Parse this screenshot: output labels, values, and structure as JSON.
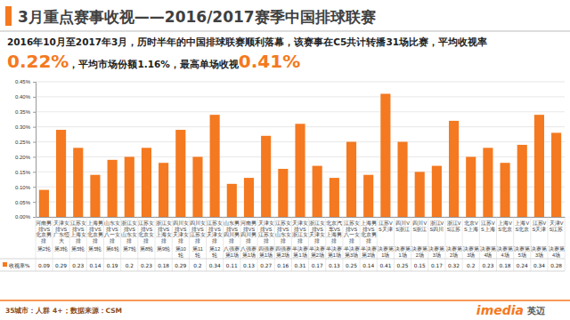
{
  "chart_data": {
    "type": "bar",
    "title": "3月重点赛事收视——2016/2017赛季中国排球联赛",
    "subtitle": [
      "2016年10月至2017年3月，历时半年的中国排球联赛顺利落幕，该赛事在C5共计转播31场比赛，平均收视率",
      "0.22%",
      "，平均市场份额1.16%，最高单场收视",
      "0.41%"
    ],
    "categories": [
      "河南男排VS北京男排\n第2轮",
      "天津女排VS广东恒大\n第3轮",
      "江苏女排VS上海女排\n第5轮",
      "上海男排VS北京男排\n第5轮",
      "山东女排VS八一女排\n第6轮",
      "浙江女排VS山东女排\n第7轮",
      "江苏女排VS北京女排\n第8轮",
      "浙江女排VS上海女排\n第9轮",
      "四川女排VS天津女排\n第10轮",
      "四川女排VS江苏女排\n第11轮",
      "江苏女排VS天津女排\n第12轮",
      "山东男排VS四川男排\n八强赛第1场",
      "河南男排VS四川男排\n八强赛第1场",
      "天津女排VS江苏女排\n四强赛第1场",
      "江苏女排VS山东女排\n四强赛第2场",
      "天津女排VS浙江女排\n半决赛第1场",
      "浙江女排VS天津女排\n半决赛第2场",
      "北京汽车VS上海男排\n半决赛第1场",
      "江苏女排VS八一女排\n半决赛第3场",
      "上海男排VS北京男排\n半决赛第2场",
      "江苏VS天津\n决赛第1场",
      "四川VS浙江\n决赛第1场",
      "四川VS浙江\n决赛第2场",
      "浙江VS四川\n决赛第3场",
      "浙江VS江苏\n决赛第2场",
      "北京VS上海\n决赛第3场",
      "江苏VS上海\n决赛第4场",
      "上海VS北京\n决赛第4场",
      "上海VS北京\n决赛第5场",
      "江苏VS天津\n决赛第3场",
      "天津VS江苏\n决赛第4场"
    ],
    "series": [
      {
        "name": "收视率%",
        "color": "#f47920",
        "values": [
          0.09,
          0.29,
          0.23,
          0.14,
          0.19,
          0.2,
          0.23,
          0.18,
          0.29,
          0.2,
          0.34,
          0.11,
          0.13,
          0.27,
          0.16,
          0.31,
          0.17,
          0.13,
          0.25,
          0.14,
          0.41,
          0.25,
          0.15,
          0.17,
          0.32,
          0.2,
          0.23,
          0.18,
          0.24,
          0.34,
          0.28
        ]
      }
    ],
    "ylim": [
      0,
      0.45
    ],
    "yticks": [
      {
        "value": 0,
        "label": "0.00%"
      },
      {
        "value": 0.05,
        "label": "0.05%"
      },
      {
        "value": 0.1,
        "label": "0.10%"
      },
      {
        "value": 0.15,
        "label": "0.15%"
      },
      {
        "value": 0.2,
        "label": "0.20%"
      },
      {
        "value": 0.25,
        "label": "0.25%"
      },
      {
        "value": 0.3,
        "label": "0.30%"
      },
      {
        "value": 0.35,
        "label": "0.35%"
      },
      {
        "value": 0.4,
        "label": "0.40%"
      },
      {
        "value": 0.45,
        "label": "0.45%"
      }
    ],
    "grid": true,
    "legend": "bottom",
    "data_labels": true,
    "annotations": [
      "35城市：人群 4+；数据来源：CSM",
      "imedia",
      "英迈"
    ]
  }
}
